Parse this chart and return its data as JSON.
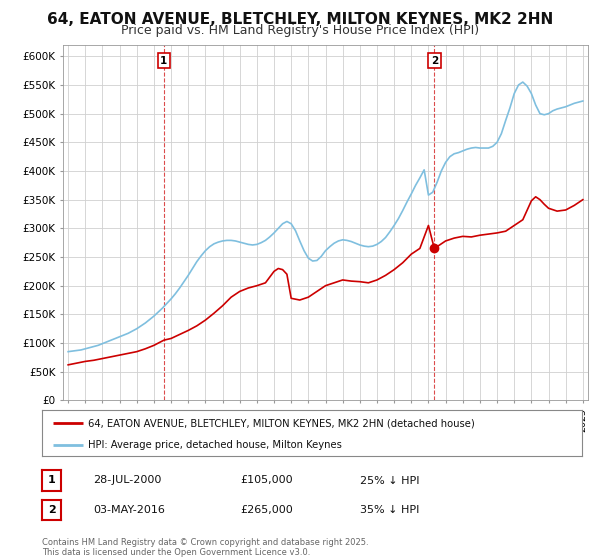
{
  "title": "64, EATON AVENUE, BLETCHLEY, MILTON KEYNES, MK2 2HN",
  "subtitle": "Price paid vs. HM Land Registry's House Price Index (HPI)",
  "title_fontsize": 11,
  "subtitle_fontsize": 9,
  "ylim": [
    0,
    620000
  ],
  "yticks": [
    0,
    50000,
    100000,
    150000,
    200000,
    250000,
    300000,
    350000,
    400000,
    450000,
    500000,
    550000,
    600000
  ],
  "ytick_labels": [
    "£0",
    "£50K",
    "£100K",
    "£150K",
    "£200K",
    "£250K",
    "£300K",
    "£350K",
    "£400K",
    "£450K",
    "£500K",
    "£550K",
    "£600K"
  ],
  "background_color": "#ffffff",
  "plot_background": "#ffffff",
  "grid_color": "#d0d0d0",
  "hpi_color": "#7fbfdf",
  "price_color": "#cc0000",
  "vline_color": "#cc0000",
  "marker1_x": 2000.58,
  "marker1_y": 105000,
  "marker2_x": 2016.34,
  "marker2_y": 265000,
  "legend_entry1": "64, EATON AVENUE, BLETCHLEY, MILTON KEYNES, MK2 2HN (detached house)",
  "legend_entry2": "HPI: Average price, detached house, Milton Keynes",
  "footnote": "Contains HM Land Registry data © Crown copyright and database right 2025.\nThis data is licensed under the Open Government Licence v3.0.",
  "xmin": 1994.7,
  "xmax": 2025.3,
  "years_hpi": [
    1995.0,
    1995.25,
    1995.5,
    1995.75,
    1996.0,
    1996.25,
    1996.5,
    1996.75,
    1997.0,
    1997.25,
    1997.5,
    1997.75,
    1998.0,
    1998.25,
    1998.5,
    1998.75,
    1999.0,
    1999.25,
    1999.5,
    1999.75,
    2000.0,
    2000.25,
    2000.5,
    2000.75,
    2001.0,
    2001.25,
    2001.5,
    2001.75,
    2002.0,
    2002.25,
    2002.5,
    2002.75,
    2003.0,
    2003.25,
    2003.5,
    2003.75,
    2004.0,
    2004.25,
    2004.5,
    2004.75,
    2005.0,
    2005.25,
    2005.5,
    2005.75,
    2006.0,
    2006.25,
    2006.5,
    2006.75,
    2007.0,
    2007.25,
    2007.5,
    2007.75,
    2008.0,
    2008.25,
    2008.5,
    2008.75,
    2009.0,
    2009.25,
    2009.5,
    2009.75,
    2010.0,
    2010.25,
    2010.5,
    2010.75,
    2011.0,
    2011.25,
    2011.5,
    2011.75,
    2012.0,
    2012.25,
    2012.5,
    2012.75,
    2013.0,
    2013.25,
    2013.5,
    2013.75,
    2014.0,
    2014.25,
    2014.5,
    2014.75,
    2015.0,
    2015.25,
    2015.5,
    2015.75,
    2016.0,
    2016.25,
    2016.5,
    2016.75,
    2017.0,
    2017.25,
    2017.5,
    2017.75,
    2018.0,
    2018.25,
    2018.5,
    2018.75,
    2019.0,
    2019.25,
    2019.5,
    2019.75,
    2020.0,
    2020.25,
    2020.5,
    2020.75,
    2021.0,
    2021.25,
    2021.5,
    2021.75,
    2022.0,
    2022.25,
    2022.5,
    2022.75,
    2023.0,
    2023.25,
    2023.5,
    2023.75,
    2024.0,
    2024.25,
    2024.5,
    2024.75,
    2025.0
  ],
  "hpi_values": [
    85000,
    86000,
    87000,
    88000,
    90000,
    92000,
    94000,
    96000,
    99000,
    102000,
    105000,
    108000,
    111000,
    114000,
    117000,
    121000,
    125000,
    130000,
    135000,
    141000,
    147000,
    154000,
    161000,
    169000,
    177000,
    186000,
    196000,
    207000,
    218000,
    230000,
    242000,
    252000,
    261000,
    268000,
    273000,
    276000,
    278000,
    279000,
    279000,
    278000,
    276000,
    274000,
    272000,
    271000,
    272000,
    275000,
    279000,
    285000,
    292000,
    300000,
    308000,
    312000,
    308000,
    296000,
    278000,
    261000,
    248000,
    243000,
    244000,
    251000,
    261000,
    268000,
    274000,
    278000,
    280000,
    279000,
    277000,
    274000,
    271000,
    269000,
    268000,
    269000,
    272000,
    277000,
    284000,
    294000,
    305000,
    317000,
    331000,
    346000,
    360000,
    375000,
    388000,
    402000,
    358000,
    363000,
    380000,
    400000,
    415000,
    425000,
    430000,
    432000,
    435000,
    438000,
    440000,
    441000,
    440000,
    440000,
    440000,
    443000,
    450000,
    465000,
    488000,
    510000,
    535000,
    550000,
    555000,
    548000,
    535000,
    515000,
    500000,
    498000,
    500000,
    505000,
    508000,
    510000,
    512000,
    515000,
    518000,
    520000,
    522000
  ],
  "years_price": [
    1995.0,
    1995.5,
    1996.0,
    1996.5,
    1997.0,
    1997.5,
    1998.0,
    1998.5,
    1999.0,
    1999.5,
    2000.0,
    2000.58,
    2001.0,
    2001.5,
    2002.0,
    2002.5,
    2003.0,
    2003.5,
    2004.0,
    2004.5,
    2005.0,
    2005.5,
    2006.0,
    2006.5,
    2007.0,
    2007.25,
    2007.5,
    2007.75,
    2008.0,
    2008.5,
    2009.0,
    2009.5,
    2010.0,
    2010.5,
    2011.0,
    2011.5,
    2012.0,
    2012.5,
    2013.0,
    2013.5,
    2014.0,
    2014.5,
    2015.0,
    2015.5,
    2016.0,
    2016.34,
    2016.5,
    2017.0,
    2017.5,
    2018.0,
    2018.5,
    2019.0,
    2019.5,
    2020.0,
    2020.5,
    2021.0,
    2021.5,
    2022.0,
    2022.25,
    2022.5,
    2022.75,
    2023.0,
    2023.5,
    2024.0,
    2024.5,
    2025.0
  ],
  "price_values": [
    62000,
    65000,
    68000,
    70000,
    73000,
    76000,
    79000,
    82000,
    85000,
    90000,
    96000,
    105000,
    108000,
    115000,
    122000,
    130000,
    140000,
    152000,
    165000,
    180000,
    190000,
    196000,
    200000,
    205000,
    225000,
    230000,
    228000,
    220000,
    178000,
    175000,
    180000,
    190000,
    200000,
    205000,
    210000,
    208000,
    207000,
    205000,
    210000,
    218000,
    228000,
    240000,
    255000,
    265000,
    305000,
    265000,
    268000,
    278000,
    283000,
    286000,
    285000,
    288000,
    290000,
    292000,
    295000,
    305000,
    315000,
    348000,
    355000,
    350000,
    342000,
    335000,
    330000,
    332000,
    340000,
    350000
  ]
}
